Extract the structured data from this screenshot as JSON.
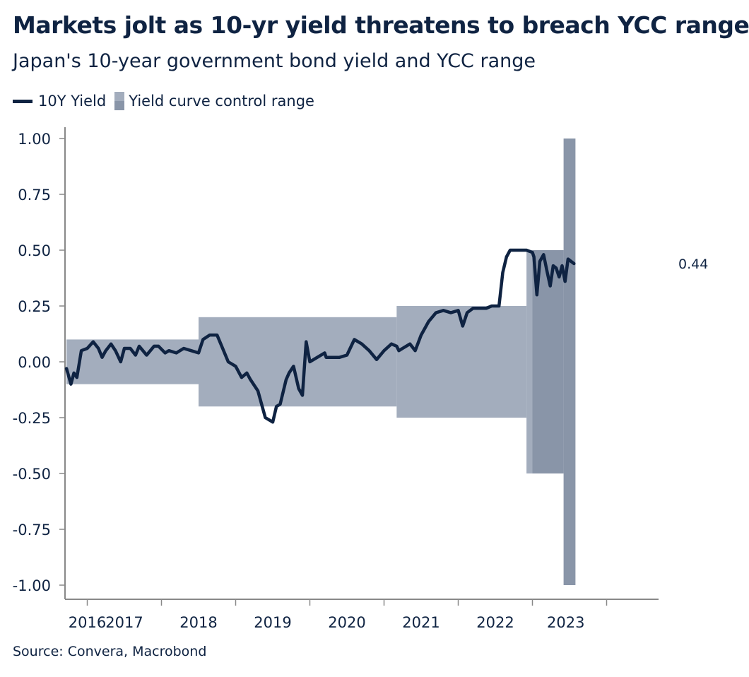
{
  "title": "Markets jolt as 10-yr yield threatens to breach YCC range",
  "subtitle": "Japan's 10-year government bond yield and YCC range",
  "source": "Source: Convera, Macrobond",
  "legend": {
    "line_label": "10Y Yield",
    "area_label": "Yield curve control range"
  },
  "colors": {
    "line": "#0f2342",
    "band": "#a3adbd",
    "band_dark": "#8995a8",
    "axis": "#888888"
  },
  "chart_data": {
    "type": "line",
    "xlabel": "",
    "ylabel": "",
    "xlim": [
      2015.7,
      2023.7
    ],
    "ylim": [
      -1.05,
      1.05
    ],
    "yticks": [
      1.0,
      0.75,
      0.5,
      0.25,
      0.0,
      -0.25,
      -0.5,
      -0.75,
      -1.0
    ],
    "ytick_labels": [
      "1.00",
      "0.75",
      "0.50",
      "0.25",
      "0.00",
      "-0.25",
      "-0.50",
      "-0.75",
      "-1.00"
    ],
    "xtick_marks": [
      2016,
      2017,
      2018,
      2019,
      2020,
      2021,
      2022,
      2023
    ],
    "xtick_labels": [
      {
        "label": "2016",
        "x": 2016.0
      },
      {
        "label": "2017",
        "x": 2016.5
      },
      {
        "label": "2018",
        "x": 2017.5
      },
      {
        "label": "2019",
        "x": 2018.5
      },
      {
        "label": "2020",
        "x": 2019.5
      },
      {
        "label": "2021",
        "x": 2020.5
      },
      {
        "label": "2022",
        "x": 2021.5
      },
      {
        "label": "2023",
        "x": 2022.45
      }
    ],
    "last_value_label": "0.44",
    "ycc_range": [
      {
        "x_start": 2015.72,
        "x_end": 2017.5,
        "lower": -0.1,
        "upper": 0.1,
        "shade": "light"
      },
      {
        "x_start": 2017.5,
        "x_end": 2020.17,
        "lower": -0.2,
        "upper": 0.2,
        "shade": "light"
      },
      {
        "x_start": 2020.17,
        "x_end": 2021.92,
        "lower": -0.25,
        "upper": 0.25,
        "shade": "light"
      },
      {
        "x_start": 2021.92,
        "x_end": 2022.0,
        "lower": -0.5,
        "upper": 0.5,
        "shade": "light"
      },
      {
        "x_start": 2022.0,
        "x_end": 2022.42,
        "lower": -0.5,
        "upper": 0.5,
        "shade": "dark"
      },
      {
        "x_start": 2022.42,
        "x_end": 2022.58,
        "lower": -1.0,
        "upper": 1.0,
        "shade": "dark"
      }
    ],
    "series": [
      {
        "name": "10Y Yield",
        "x": [
          2015.72,
          2015.78,
          2015.82,
          2015.86,
          2015.92,
          2016.0,
          2016.08,
          2016.15,
          2016.2,
          2016.25,
          2016.32,
          2016.38,
          2016.45,
          2016.5,
          2016.58,
          2016.65,
          2016.7,
          2016.8,
          2016.9,
          2016.96,
          2017.05,
          2017.1,
          2017.2,
          2017.3,
          2017.4,
          2017.5,
          2017.56,
          2017.65,
          2017.75,
          2017.8,
          2017.9,
          2018.0,
          2018.08,
          2018.15,
          2018.2,
          2018.3,
          2018.4,
          2018.5,
          2018.55,
          2018.6,
          2018.68,
          2018.72,
          2018.78,
          2018.85,
          2018.9,
          2018.95,
          2019.0,
          2019.1,
          2019.2,
          2019.22,
          2019.3,
          2019.4,
          2019.5,
          2019.6,
          2019.7,
          2019.8,
          2019.9,
          2020.0,
          2020.1,
          2020.17,
          2020.2,
          2020.25,
          2020.35,
          2020.42,
          2020.5,
          2020.6,
          2020.7,
          2020.8,
          2020.9,
          2021.0,
          2021.06,
          2021.12,
          2021.2,
          2021.25,
          2021.3,
          2021.38,
          2021.45,
          2021.55,
          2021.6,
          2021.65,
          2021.7,
          2021.85,
          2021.92,
          2022.0,
          2022.02,
          2022.06,
          2022.1,
          2022.15,
          2022.2,
          2022.24,
          2022.28,
          2022.32,
          2022.36,
          2022.4,
          2022.44,
          2022.48,
          2022.52,
          2022.56
        ],
        "values": [
          -0.03,
          -0.1,
          -0.05,
          -0.07,
          0.05,
          0.06,
          0.09,
          0.06,
          0.02,
          0.05,
          0.08,
          0.05,
          0.0,
          0.06,
          0.06,
          0.03,
          0.07,
          0.03,
          0.07,
          0.07,
          0.04,
          0.05,
          0.04,
          0.06,
          0.05,
          0.04,
          0.1,
          0.12,
          0.12,
          0.08,
          0.0,
          -0.02,
          -0.07,
          -0.05,
          -0.08,
          -0.13,
          -0.25,
          -0.27,
          -0.2,
          -0.19,
          -0.08,
          -0.05,
          -0.02,
          -0.12,
          -0.15,
          0.09,
          0.0,
          0.02,
          0.04,
          0.02,
          0.02,
          0.02,
          0.03,
          0.1,
          0.08,
          0.05,
          0.01,
          0.05,
          0.08,
          0.07,
          0.05,
          0.06,
          0.08,
          0.05,
          0.12,
          0.18,
          0.22,
          0.23,
          0.22,
          0.23,
          0.16,
          0.22,
          0.24,
          0.24,
          0.24,
          0.24,
          0.25,
          0.25,
          0.4,
          0.47,
          0.5,
          0.5,
          0.5,
          0.49,
          0.47,
          0.3,
          0.45,
          0.48,
          0.4,
          0.34,
          0.43,
          0.42,
          0.38,
          0.43,
          0.36,
          0.46,
          0.45,
          0.44
        ]
      }
    ]
  }
}
